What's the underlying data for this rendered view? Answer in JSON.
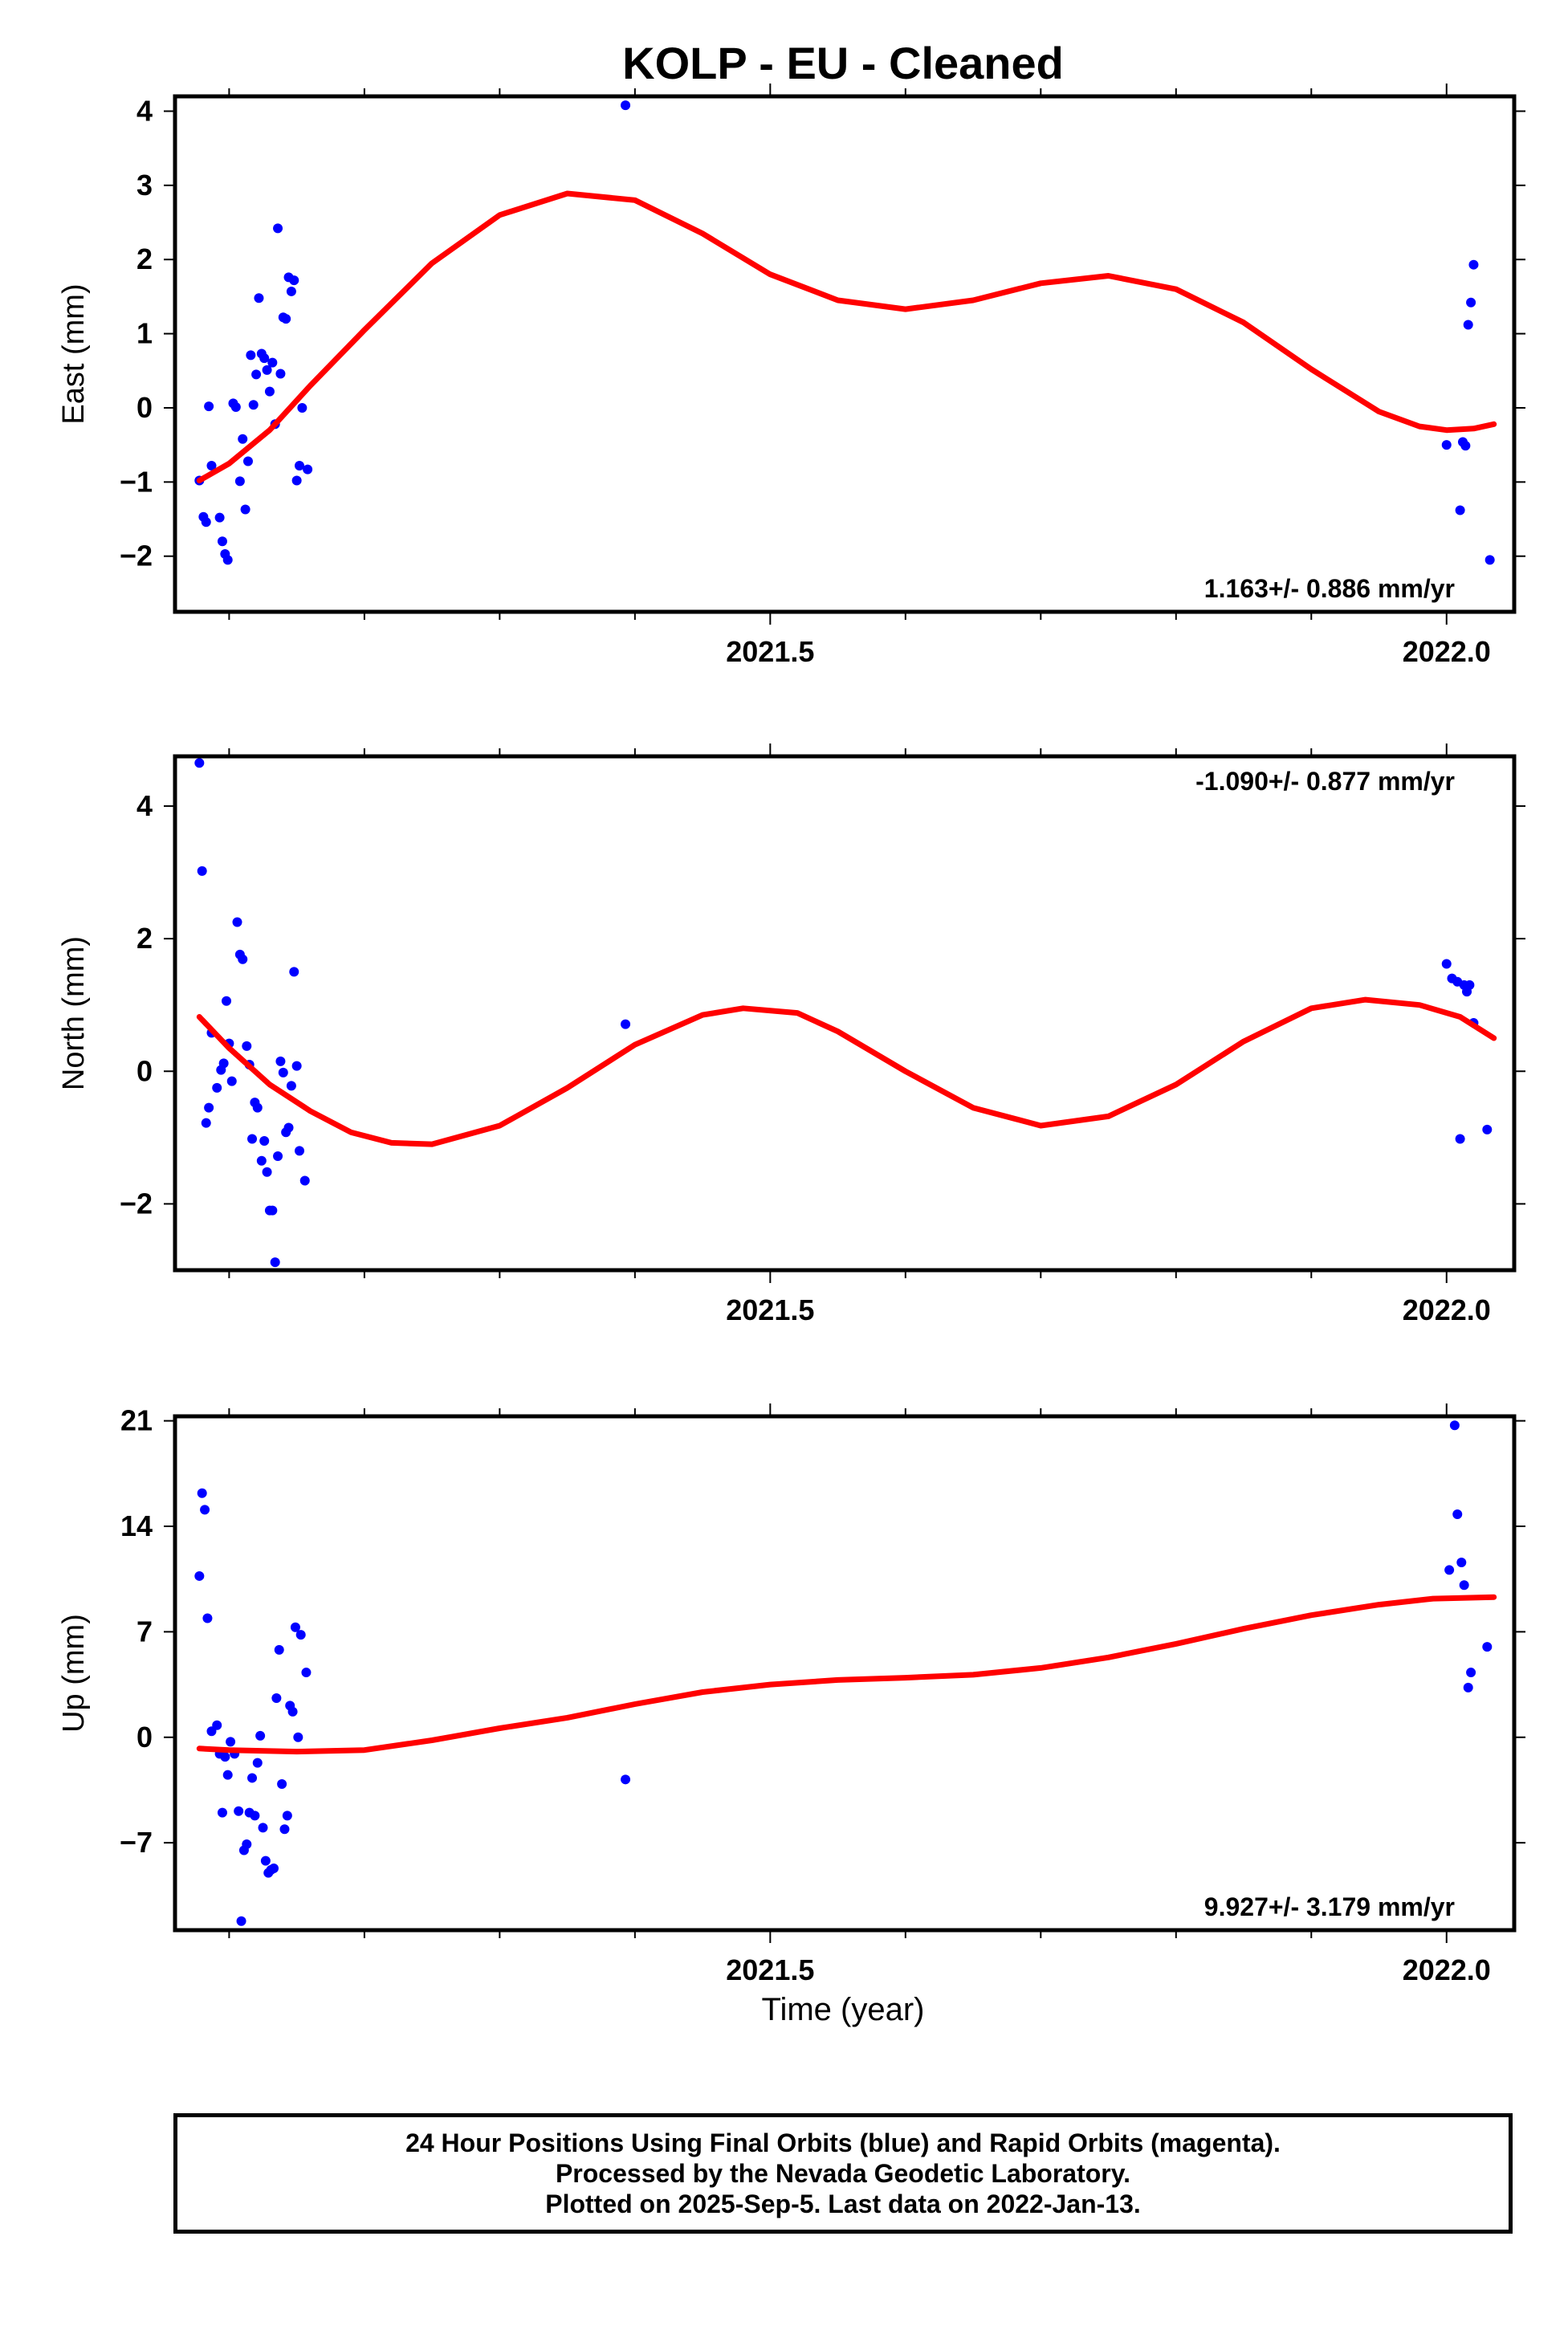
{
  "title": "KOLP  - EU - Cleaned",
  "xlabel": "Time (year)",
  "colors": {
    "final_orbits": "#0000ff",
    "fit": "#ff0000",
    "axes": "#000000"
  },
  "footer": {
    "line1": "24 Hour Positions Using Final Orbits (blue) and Rapid Orbits (magenta).",
    "line2": "Processed by the Nevada Geodetic Laboratory.",
    "line3": "Plotted on 2025-Sep-5. Last data on 2022-Jan-13."
  },
  "chart_data": [
    {
      "type": "scatter",
      "ylabel": "East (mm)",
      "xlim": [
        2021.06,
        2022.05
      ],
      "ylim": [
        -2.75,
        4.2
      ],
      "x_ticks": [
        2021.5,
        2022.0
      ],
      "x_tick_labels": [
        "2021.5",
        "2022.0"
      ],
      "y_ticks": [
        -2,
        -1,
        0,
        1,
        2,
        3,
        4
      ],
      "y_tick_labels": [
        "−2",
        "−1",
        "0",
        "1",
        "2",
        "3",
        "4"
      ],
      "rate_label": "1.163+/- 0.886 mm/yr",
      "rate_position": "bottom-right",
      "points": [
        [
          2021.078,
          -0.98
        ],
        [
          2021.081,
          -1.47
        ],
        [
          2021.083,
          -1.54
        ],
        [
          2021.085,
          0.02
        ],
        [
          2021.087,
          -0.78
        ],
        [
          2021.093,
          -1.48
        ],
        [
          2021.095,
          -1.8
        ],
        [
          2021.097,
          -1.97
        ],
        [
          2021.099,
          -2.05
        ],
        [
          2021.103,
          0.06
        ],
        [
          2021.105,
          0.01
        ],
        [
          2021.108,
          -0.99
        ],
        [
          2021.11,
          -0.42
        ],
        [
          2021.112,
          -1.37
        ],
        [
          2021.114,
          -0.72
        ],
        [
          2021.116,
          0.71
        ],
        [
          2021.118,
          0.04
        ],
        [
          2021.12,
          0.45
        ],
        [
          2021.122,
          1.48
        ],
        [
          2021.124,
          0.73
        ],
        [
          2021.126,
          0.67
        ],
        [
          2021.128,
          0.51
        ],
        [
          2021.13,
          0.22
        ],
        [
          2021.132,
          0.61
        ],
        [
          2021.134,
          -0.22
        ],
        [
          2021.136,
          2.42
        ],
        [
          2021.138,
          0.46
        ],
        [
          2021.14,
          1.22
        ],
        [
          2021.142,
          1.2
        ],
        [
          2021.144,
          1.76
        ],
        [
          2021.146,
          1.57
        ],
        [
          2021.148,
          1.72
        ],
        [
          2021.15,
          -0.98
        ],
        [
          2021.152,
          -0.78
        ],
        [
          2021.154,
          0.0
        ],
        [
          2021.158,
          -0.83
        ],
        [
          2021.393,
          4.08
        ],
        [
          2022.0,
          -0.5
        ],
        [
          2022.01,
          -1.38
        ],
        [
          2022.012,
          -0.46
        ],
        [
          2022.014,
          -0.51
        ],
        [
          2022.016,
          1.12
        ],
        [
          2022.018,
          1.42
        ],
        [
          2022.02,
          1.93
        ],
        [
          2022.032,
          -2.05
        ]
      ],
      "fit": [
        [
          2021.078,
          -0.98
        ],
        [
          2021.1,
          -0.75
        ],
        [
          2021.13,
          -0.3
        ],
        [
          2021.16,
          0.3
        ],
        [
          2021.2,
          1.05
        ],
        [
          2021.25,
          1.95
        ],
        [
          2021.3,
          2.6
        ],
        [
          2021.35,
          2.89
        ],
        [
          2021.4,
          2.8
        ],
        [
          2021.45,
          2.35
        ],
        [
          2021.5,
          1.8
        ],
        [
          2021.55,
          1.45
        ],
        [
          2021.6,
          1.33
        ],
        [
          2021.65,
          1.45
        ],
        [
          2021.7,
          1.68
        ],
        [
          2021.75,
          1.78
        ],
        [
          2021.8,
          1.6
        ],
        [
          2021.85,
          1.15
        ],
        [
          2021.9,
          0.52
        ],
        [
          2021.95,
          -0.05
        ],
        [
          2021.98,
          -0.25
        ],
        [
          2022.0,
          -0.3
        ],
        [
          2022.02,
          -0.28
        ],
        [
          2022.035,
          -0.22
        ]
      ]
    },
    {
      "type": "scatter",
      "ylabel": "North (mm)",
      "xlim": [
        2021.06,
        2022.05
      ],
      "ylim": [
        -3.0,
        4.75
      ],
      "x_ticks": [
        2021.5,
        2022.0
      ],
      "x_tick_labels": [
        "2021.5",
        "2022.0"
      ],
      "y_ticks": [
        -2,
        0,
        2,
        4
      ],
      "y_tick_labels": [
        "−2",
        "0",
        "2",
        "4"
      ],
      "rate_label": "-1.090+/- 0.877 mm/yr",
      "rate_position": "top-right",
      "points": [
        [
          2021.078,
          4.65
        ],
        [
          2021.08,
          3.02
        ],
        [
          2021.083,
          -0.78
        ],
        [
          2021.085,
          -0.55
        ],
        [
          2021.087,
          0.58
        ],
        [
          2021.091,
          -0.25
        ],
        [
          2021.094,
          0.02
        ],
        [
          2021.096,
          0.12
        ],
        [
          2021.098,
          1.06
        ],
        [
          2021.1,
          0.42
        ],
        [
          2021.102,
          -0.15
        ],
        [
          2021.106,
          2.25
        ],
        [
          2021.108,
          1.76
        ],
        [
          2021.11,
          1.69
        ],
        [
          2021.113,
          0.38
        ],
        [
          2021.115,
          0.1
        ],
        [
          2021.117,
          -1.02
        ],
        [
          2021.119,
          -0.47
        ],
        [
          2021.121,
          -0.55
        ],
        [
          2021.124,
          -1.35
        ],
        [
          2021.126,
          -1.05
        ],
        [
          2021.128,
          -1.52
        ],
        [
          2021.13,
          -2.1
        ],
        [
          2021.132,
          -2.1
        ],
        [
          2021.134,
          -2.88
        ],
        [
          2021.136,
          -1.28
        ],
        [
          2021.138,
          0.15
        ],
        [
          2021.14,
          -0.02
        ],
        [
          2021.142,
          -0.92
        ],
        [
          2021.144,
          -0.85
        ],
        [
          2021.146,
          -0.22
        ],
        [
          2021.148,
          1.5
        ],
        [
          2021.15,
          0.08
        ],
        [
          2021.152,
          -1.2
        ],
        [
          2021.156,
          -1.65
        ],
        [
          2021.393,
          0.71
        ],
        [
          2022.0,
          1.62
        ],
        [
          2022.004,
          1.4
        ],
        [
          2022.008,
          1.35
        ],
        [
          2022.01,
          -1.02
        ],
        [
          2022.013,
          1.3
        ],
        [
          2022.015,
          1.2
        ],
        [
          2022.017,
          1.3
        ],
        [
          2022.02,
          0.73
        ],
        [
          2022.03,
          -0.88
        ]
      ],
      "fit": [
        [
          2021.078,
          0.82
        ],
        [
          2021.1,
          0.35
        ],
        [
          2021.13,
          -0.2
        ],
        [
          2021.16,
          -0.6
        ],
        [
          2021.19,
          -0.92
        ],
        [
          2021.22,
          -1.08
        ],
        [
          2021.25,
          -1.1
        ],
        [
          2021.3,
          -0.82
        ],
        [
          2021.35,
          -0.25
        ],
        [
          2021.4,
          0.4
        ],
        [
          2021.45,
          0.85
        ],
        [
          2021.48,
          0.95
        ],
        [
          2021.52,
          0.88
        ],
        [
          2021.55,
          0.6
        ],
        [
          2021.6,
          0.0
        ],
        [
          2021.65,
          -0.55
        ],
        [
          2021.7,
          -0.82
        ],
        [
          2021.75,
          -0.68
        ],
        [
          2021.8,
          -0.2
        ],
        [
          2021.85,
          0.45
        ],
        [
          2021.9,
          0.95
        ],
        [
          2021.94,
          1.08
        ],
        [
          2021.98,
          1.0
        ],
        [
          2022.01,
          0.82
        ],
        [
          2022.035,
          0.5
        ]
      ]
    },
    {
      "type": "scatter",
      "ylabel": "Up (mm)",
      "xlim": [
        2021.06,
        2022.05
      ],
      "ylim": [
        -12.8,
        21.3
      ],
      "x_ticks": [
        2021.5,
        2022.0
      ],
      "x_tick_labels": [
        "2021.5",
        "2022.0"
      ],
      "y_ticks": [
        -7,
        0,
        7,
        14,
        21
      ],
      "y_tick_labels": [
        "−7",
        "0",
        "7",
        "14",
        "21"
      ],
      "rate_label": "9.927+/- 3.179 mm/yr",
      "rate_position": "bottom-right",
      "points": [
        [
          2021.078,
          10.7
        ],
        [
          2021.08,
          16.2
        ],
        [
          2021.082,
          15.1
        ],
        [
          2021.084,
          7.9
        ],
        [
          2021.087,
          0.4
        ],
        [
          2021.091,
          0.8
        ],
        [
          2021.093,
          -1.1
        ],
        [
          2021.095,
          -5.0
        ],
        [
          2021.097,
          -1.3
        ],
        [
          2021.099,
          -2.5
        ],
        [
          2021.101,
          -0.3
        ],
        [
          2021.104,
          -1.1
        ],
        [
          2021.107,
          -4.9
        ],
        [
          2021.109,
          -12.2
        ],
        [
          2021.111,
          -7.5
        ],
        [
          2021.113,
          -7.1
        ],
        [
          2021.115,
          -5.0
        ],
        [
          2021.117,
          -2.7
        ],
        [
          2021.119,
          -5.2
        ],
        [
          2021.121,
          -1.7
        ],
        [
          2021.123,
          0.1
        ],
        [
          2021.125,
          -6.0
        ],
        [
          2021.127,
          -8.2
        ],
        [
          2021.129,
          -9.0
        ],
        [
          2021.131,
          -8.8
        ],
        [
          2021.133,
          -8.7
        ],
        [
          2021.135,
          2.6
        ],
        [
          2021.137,
          5.8
        ],
        [
          2021.139,
          -3.1
        ],
        [
          2021.141,
          -6.1
        ],
        [
          2021.143,
          -5.2
        ],
        [
          2021.145,
          2.1
        ],
        [
          2021.147,
          1.7
        ],
        [
          2021.149,
          7.3
        ],
        [
          2021.151,
          0.0
        ],
        [
          2021.153,
          6.8
        ],
        [
          2021.157,
          4.3
        ],
        [
          2021.393,
          -2.8
        ],
        [
          2022.002,
          11.1
        ],
        [
          2022.006,
          20.7
        ],
        [
          2022.008,
          14.8
        ],
        [
          2022.011,
          11.6
        ],
        [
          2022.013,
          10.1
        ],
        [
          2022.016,
          3.3
        ],
        [
          2022.018,
          4.3
        ],
        [
          2022.03,
          6.0
        ]
      ],
      "fit": [
        [
          2021.078,
          -0.75
        ],
        [
          2021.1,
          -0.85
        ],
        [
          2021.15,
          -0.95
        ],
        [
          2021.2,
          -0.85
        ],
        [
          2021.25,
          -0.2
        ],
        [
          2021.3,
          0.6
        ],
        [
          2021.35,
          1.3
        ],
        [
          2021.4,
          2.2
        ],
        [
          2021.45,
          3.0
        ],
        [
          2021.5,
          3.5
        ],
        [
          2021.55,
          3.8
        ],
        [
          2021.6,
          3.95
        ],
        [
          2021.65,
          4.15
        ],
        [
          2021.7,
          4.6
        ],
        [
          2021.75,
          5.3
        ],
        [
          2021.8,
          6.2
        ],
        [
          2021.85,
          7.2
        ],
        [
          2021.9,
          8.1
        ],
        [
          2021.95,
          8.8
        ],
        [
          2021.99,
          9.2
        ],
        [
          2022.035,
          9.3
        ]
      ]
    }
  ]
}
